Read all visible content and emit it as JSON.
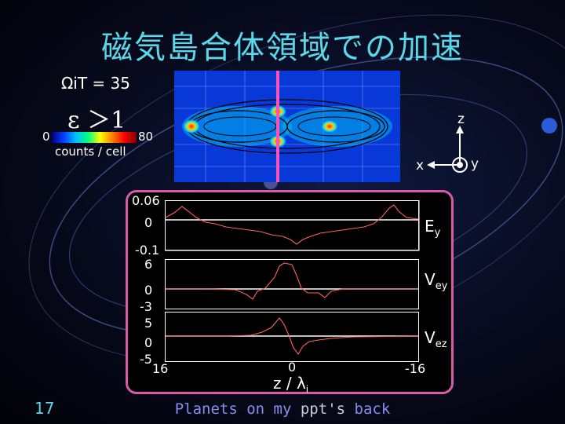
{
  "slide": {
    "title": "磁気島合体領域での加速",
    "number": "17"
  },
  "sim": {
    "omega_label": "ΩiT = 35",
    "epsilon_label": "ε ＞1",
    "colorbar": {
      "min": "0",
      "max": "80",
      "unit": "counts / cell"
    }
  },
  "axes_glyph": {
    "z": "z",
    "x": "x",
    "y": "y"
  },
  "plots": {
    "panels": [
      {
        "name": "Ey",
        "label_main": "E",
        "label_sub": "y",
        "ticks": [
          "0.06",
          "0",
          "-0.1"
        ]
      },
      {
        "name": "Vey",
        "label_main": "V",
        "label_sub": "ey",
        "ticks": [
          "6",
          "0",
          "-3"
        ]
      },
      {
        "name": "Vez",
        "label_main": "V",
        "label_sub": "ez",
        "ticks": [
          "5",
          "0",
          "-5"
        ]
      }
    ],
    "x_ticks": {
      "left": "16",
      "center": "0",
      "right": "-16"
    },
    "x_label_main": "z / λ",
    "x_label_sub": "i"
  },
  "footer": {
    "planets": "Planets on my",
    "ppt": "ppt",
    "apos": "'s",
    "back": "back"
  },
  "colors": {
    "title": "#5ad7e8",
    "frame": "#d85aa8",
    "trace": "#ff6060",
    "center_line": "#ff4fb8"
  }
}
